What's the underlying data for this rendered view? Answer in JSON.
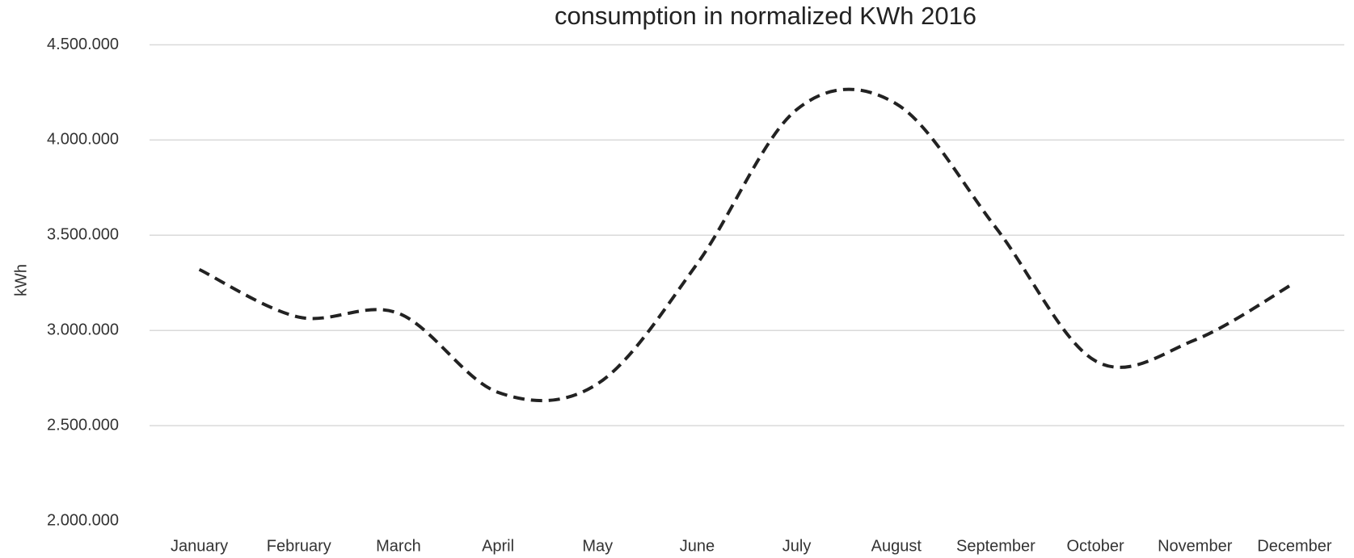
{
  "chart_data": {
    "type": "line",
    "title": "consumption in normalized KWh 2016",
    "y_label": "kWh",
    "categories": [
      "January",
      "February",
      "March",
      "April",
      "May",
      "June",
      "July",
      "August",
      "September",
      "October",
      "November",
      "December"
    ],
    "series": [
      {
        "name": "consumption",
        "color": "#222222",
        "values": [
          3320000,
          3070000,
          3090000,
          2675000,
          2720000,
          3350000,
          4160000,
          4190000,
          3540000,
          2840000,
          2950000,
          3250000
        ]
      }
    ],
    "ylim": [
      2000000,
      4500000
    ],
    "yticks": [
      {
        "value": 2000000,
        "label": "2.000.000"
      },
      {
        "value": 2500000,
        "label": "2.500.000"
      },
      {
        "value": 3000000,
        "label": "3.000.000"
      },
      {
        "value": 3500000,
        "label": "3.500.000"
      },
      {
        "value": 4000000,
        "label": "4.000.000"
      },
      {
        "value": 4500000,
        "label": "4.500.000"
      }
    ],
    "grid": true
  }
}
